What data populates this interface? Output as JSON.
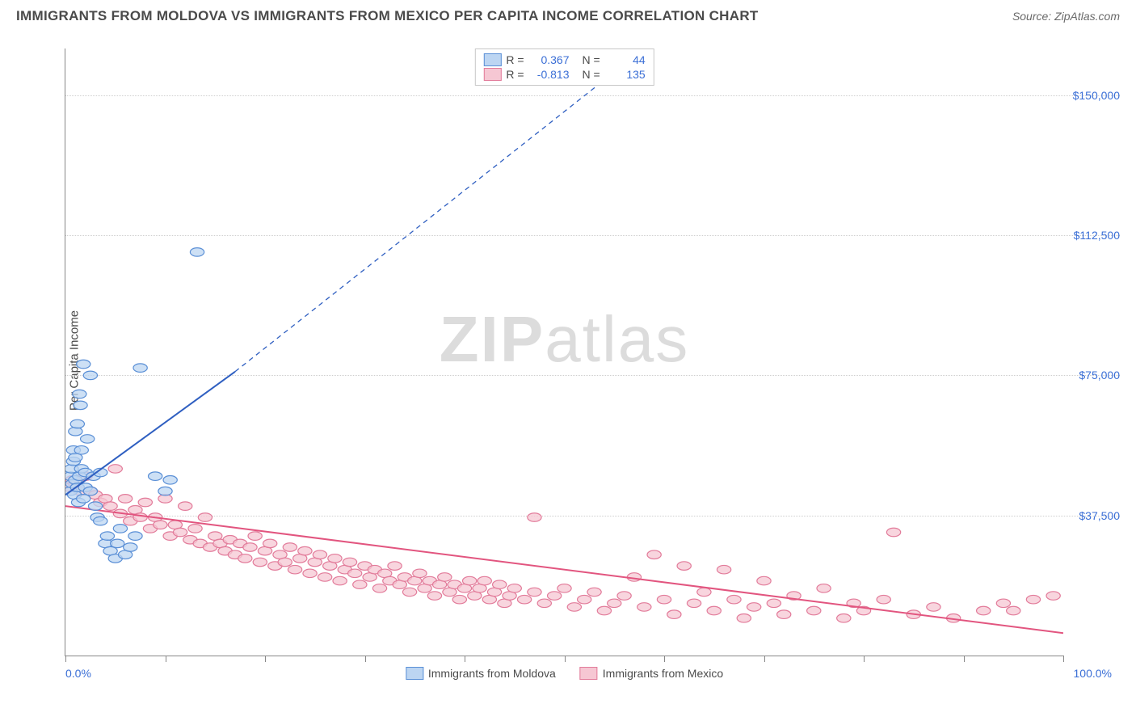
{
  "header": {
    "title": "IMMIGRANTS FROM MOLDOVA VS IMMIGRANTS FROM MEXICO PER CAPITA INCOME CORRELATION CHART",
    "source": "Source: ZipAtlas.com"
  },
  "watermark": {
    "zip": "ZIP",
    "atlas": "atlas"
  },
  "chart": {
    "type": "scatter",
    "ylabel": "Per Capita Income",
    "xmin": 0,
    "xmax": 100,
    "xmin_label": "0.0%",
    "xmax_label": "100.0%",
    "ymin": 0,
    "ymax": 162500,
    "ygrid": [
      37500,
      75000,
      112500,
      150000
    ],
    "ygrid_labels": [
      "$37,500",
      "$75,000",
      "$112,500",
      "$150,000"
    ],
    "xticks": [
      0,
      10,
      20,
      30,
      40,
      50,
      60,
      70,
      80,
      90,
      100
    ],
    "background_color": "#ffffff",
    "grid_color": "#cfcfcf",
    "axis_color": "#888888",
    "tick_label_color": "#3b6fd6",
    "marker_radius": 7,
    "marker_stroke_width": 1.2,
    "line_width": 2,
    "dash_pattern": "6 5",
    "series": [
      {
        "name": "Immigrants from Moldova",
        "fill": "#bcd5f2",
        "stroke": "#5a8fd6",
        "line_color": "#2f5fc1",
        "R": "0.367",
        "N": "44",
        "trend_solid": {
          "x1": 0,
          "y1": 43000,
          "x2": 17,
          "y2": 76000
        },
        "trend_dash": {
          "x1": 17,
          "y1": 76000,
          "x2": 58,
          "y2": 162500
        },
        "points": [
          [
            0.5,
            48000
          ],
          [
            0.5,
            44000
          ],
          [
            0.6,
            50000
          ],
          [
            0.7,
            46000
          ],
          [
            0.8,
            52000
          ],
          [
            0.8,
            55000
          ],
          [
            0.9,
            43000
          ],
          [
            1.0,
            53000
          ],
          [
            1.0,
            47000
          ],
          [
            1.0,
            60000
          ],
          [
            1.2,
            62000
          ],
          [
            1.2,
            45000
          ],
          [
            1.3,
            41000
          ],
          [
            1.4,
            48000
          ],
          [
            1.4,
            70000
          ],
          [
            1.5,
            67000
          ],
          [
            1.6,
            50000
          ],
          [
            1.6,
            55000
          ],
          [
            1.8,
            78000
          ],
          [
            1.8,
            42000
          ],
          [
            2.0,
            45000
          ],
          [
            2.0,
            49000
          ],
          [
            2.2,
            58000
          ],
          [
            2.5,
            75000
          ],
          [
            2.5,
            44000
          ],
          [
            2.8,
            48000
          ],
          [
            3.0,
            40000
          ],
          [
            3.2,
            37000
          ],
          [
            3.5,
            49000
          ],
          [
            3.5,
            36000
          ],
          [
            4.0,
            30000
          ],
          [
            4.2,
            32000
          ],
          [
            4.5,
            28000
          ],
          [
            5.0,
            26000
          ],
          [
            5.2,
            30000
          ],
          [
            5.5,
            34000
          ],
          [
            6.0,
            27000
          ],
          [
            6.5,
            29000
          ],
          [
            7.0,
            32000
          ],
          [
            7.5,
            77000
          ],
          [
            9.0,
            48000
          ],
          [
            10.0,
            44000
          ],
          [
            10.5,
            47000
          ],
          [
            13.2,
            108000
          ]
        ]
      },
      {
        "name": "Immigrants from Mexico",
        "fill": "#f6c7d3",
        "stroke": "#e27b9a",
        "line_color": "#e2557f",
        "R": "-0.813",
        "N": "135",
        "trend_solid": {
          "x1": 0,
          "y1": 40000,
          "x2": 100,
          "y2": 6000
        },
        "trend_dash": null,
        "points": [
          [
            0.5,
            45000
          ],
          [
            0.7,
            47000
          ],
          [
            1.0,
            46000
          ],
          [
            1.5,
            44000
          ],
          [
            2.0,
            48000
          ],
          [
            2.5,
            44000
          ],
          [
            3.0,
            43000
          ],
          [
            3.5,
            41000
          ],
          [
            4.0,
            42000
          ],
          [
            4.5,
            40000
          ],
          [
            5.0,
            50000
          ],
          [
            5.5,
            38000
          ],
          [
            6.0,
            42000
          ],
          [
            6.5,
            36000
          ],
          [
            7.0,
            39000
          ],
          [
            7.5,
            37000
          ],
          [
            8.0,
            41000
          ],
          [
            8.5,
            34000
          ],
          [
            9.0,
            37000
          ],
          [
            9.5,
            35000
          ],
          [
            10.0,
            42000
          ],
          [
            10.5,
            32000
          ],
          [
            11.0,
            35000
          ],
          [
            11.5,
            33000
          ],
          [
            12.0,
            40000
          ],
          [
            12.5,
            31000
          ],
          [
            13.0,
            34000
          ],
          [
            13.5,
            30000
          ],
          [
            14.0,
            37000
          ],
          [
            14.5,
            29000
          ],
          [
            15.0,
            32000
          ],
          [
            15.5,
            30000
          ],
          [
            16.0,
            28000
          ],
          [
            16.5,
            31000
          ],
          [
            17.0,
            27000
          ],
          [
            17.5,
            30000
          ],
          [
            18.0,
            26000
          ],
          [
            18.5,
            29000
          ],
          [
            19.0,
            32000
          ],
          [
            19.5,
            25000
          ],
          [
            20.0,
            28000
          ],
          [
            20.5,
            30000
          ],
          [
            21.0,
            24000
          ],
          [
            21.5,
            27000
          ],
          [
            22.0,
            25000
          ],
          [
            22.5,
            29000
          ],
          [
            23.0,
            23000
          ],
          [
            23.5,
            26000
          ],
          [
            24.0,
            28000
          ],
          [
            24.5,
            22000
          ],
          [
            25.0,
            25000
          ],
          [
            25.5,
            27000
          ],
          [
            26.0,
            21000
          ],
          [
            26.5,
            24000
          ],
          [
            27.0,
            26000
          ],
          [
            27.5,
            20000
          ],
          [
            28.0,
            23000
          ],
          [
            28.5,
            25000
          ],
          [
            29.0,
            22000
          ],
          [
            29.5,
            19000
          ],
          [
            30.0,
            24000
          ],
          [
            30.5,
            21000
          ],
          [
            31.0,
            23000
          ],
          [
            31.5,
            18000
          ],
          [
            32.0,
            22000
          ],
          [
            32.5,
            20000
          ],
          [
            33.0,
            24000
          ],
          [
            33.5,
            19000
          ],
          [
            34.0,
            21000
          ],
          [
            34.5,
            17000
          ],
          [
            35.0,
            20000
          ],
          [
            35.5,
            22000
          ],
          [
            36.0,
            18000
          ],
          [
            36.5,
            20000
          ],
          [
            37.0,
            16000
          ],
          [
            37.5,
            19000
          ],
          [
            38.0,
            21000
          ],
          [
            38.5,
            17000
          ],
          [
            39.0,
            19000
          ],
          [
            39.5,
            15000
          ],
          [
            40.0,
            18000
          ],
          [
            40.5,
            20000
          ],
          [
            41.0,
            16000
          ],
          [
            41.5,
            18000
          ],
          [
            42.0,
            20000
          ],
          [
            42.5,
            15000
          ],
          [
            43.0,
            17000
          ],
          [
            43.5,
            19000
          ],
          [
            44.0,
            14000
          ],
          [
            44.5,
            16000
          ],
          [
            45.0,
            18000
          ],
          [
            46.0,
            15000
          ],
          [
            47.0,
            17000
          ],
          [
            47.0,
            37000
          ],
          [
            48.0,
            14000
          ],
          [
            49.0,
            16000
          ],
          [
            50.0,
            18000
          ],
          [
            51.0,
            13000
          ],
          [
            52.0,
            15000
          ],
          [
            53.0,
            17000
          ],
          [
            54.0,
            12000
          ],
          [
            55.0,
            14000
          ],
          [
            56.0,
            16000
          ],
          [
            57.0,
            21000
          ],
          [
            58.0,
            13000
          ],
          [
            59.0,
            27000
          ],
          [
            60.0,
            15000
          ],
          [
            61.0,
            11000
          ],
          [
            62.0,
            24000
          ],
          [
            63.0,
            14000
          ],
          [
            64.0,
            17000
          ],
          [
            65.0,
            12000
          ],
          [
            66.0,
            23000
          ],
          [
            67.0,
            15000
          ],
          [
            68.0,
            10000
          ],
          [
            69.0,
            13000
          ],
          [
            70.0,
            20000
          ],
          [
            71.0,
            14000
          ],
          [
            72.0,
            11000
          ],
          [
            73.0,
            16000
          ],
          [
            75.0,
            12000
          ],
          [
            76.0,
            18000
          ],
          [
            78.0,
            10000
          ],
          [
            79.0,
            14000
          ],
          [
            80.0,
            12000
          ],
          [
            82.0,
            15000
          ],
          [
            83.0,
            33000
          ],
          [
            85.0,
            11000
          ],
          [
            87.0,
            13000
          ],
          [
            89.0,
            10000
          ],
          [
            92.0,
            12000
          ],
          [
            94.0,
            14000
          ],
          [
            95.0,
            12000
          ],
          [
            97.0,
            15000
          ],
          [
            99.0,
            16000
          ]
        ]
      }
    ],
    "legend_top": {
      "R_label": "R =",
      "N_label": "N ="
    }
  }
}
